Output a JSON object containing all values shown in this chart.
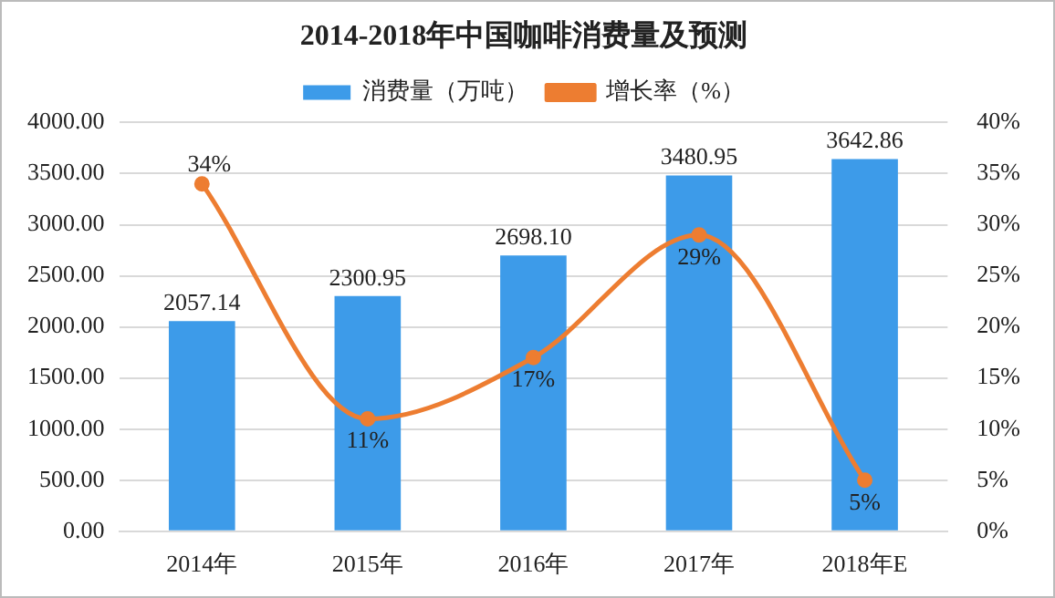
{
  "chart_data": {
    "type": "bar",
    "title": "2014-2018年中国咖啡消费量及预测",
    "categories": [
      "2014年",
      "2015年",
      "2016年",
      "2017年",
      "2018年E"
    ],
    "series": [
      {
        "name": "消费量（万吨）",
        "color": "#3d9be9",
        "values": [
          2057.14,
          2300.95,
          2698.1,
          3480.95,
          3642.86
        ],
        "value_labels": [
          "2057.14",
          "2300.95",
          "2698.10",
          "3480.95",
          "3642.86"
        ]
      },
      {
        "name": "增长率（%）",
        "type": "line",
        "axis": "y2",
        "color": "#ed7d31",
        "values": [
          34,
          11,
          17,
          29,
          5
        ],
        "value_labels": [
          "34%",
          "11%",
          "17%",
          "29%",
          "5%"
        ]
      }
    ],
    "ylim": [
      0,
      4000
    ],
    "yticks": [
      {
        "value": 0,
        "label": "0.00"
      },
      {
        "value": 500,
        "label": "500.00"
      },
      {
        "value": 1000,
        "label": "1000.00"
      },
      {
        "value": 1500,
        "label": "1500.00"
      },
      {
        "value": 2000,
        "label": "2000.00"
      },
      {
        "value": 2500,
        "label": "2500.00"
      },
      {
        "value": 3000,
        "label": "3000.00"
      },
      {
        "value": 3500,
        "label": "3500.00"
      },
      {
        "value": 4000,
        "label": "4000.00"
      }
    ],
    "y2lim": [
      0,
      40
    ],
    "y2ticks": [
      {
        "value": 0,
        "label": "0%"
      },
      {
        "value": 5,
        "label": "5%"
      },
      {
        "value": 10,
        "label": "10%"
      },
      {
        "value": 15,
        "label": "15%"
      },
      {
        "value": 20,
        "label": "20%"
      },
      {
        "value": 25,
        "label": "25%"
      },
      {
        "value": 30,
        "label": "30%"
      },
      {
        "value": 35,
        "label": "35%"
      },
      {
        "value": 40,
        "label": "40%"
      }
    ],
    "grid": "y",
    "legend": "top",
    "marker": "circle"
  }
}
